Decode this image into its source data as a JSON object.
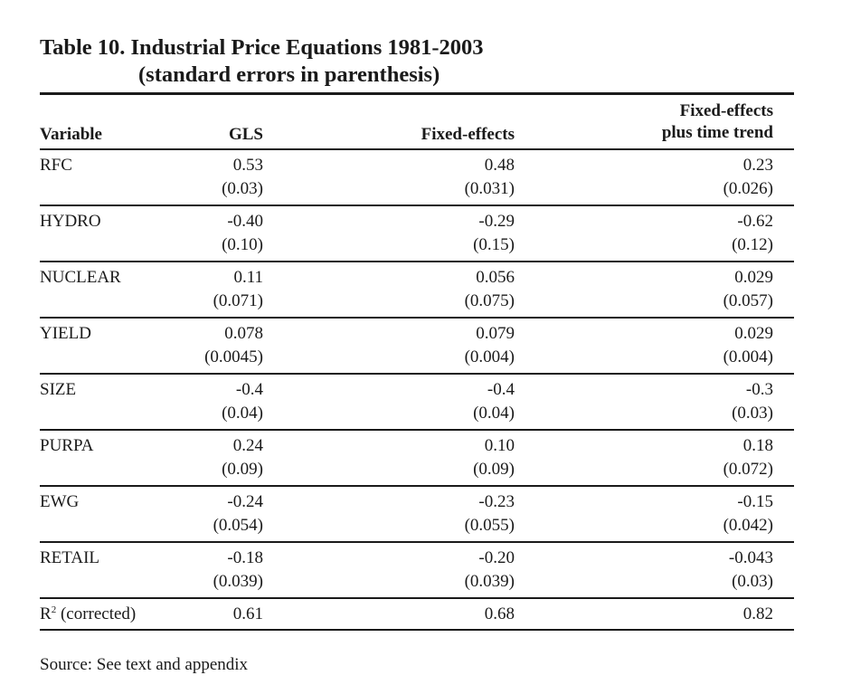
{
  "title": {
    "line1": "Table 10.  Industrial Price Equations 1981-2003",
    "line2": "(standard errors in parenthesis)"
  },
  "headers": {
    "variable": "Variable",
    "gls": "GLS",
    "fixed": "Fixed-effects",
    "trend_line1": "Fixed-effects",
    "trend_line2": "plus time trend"
  },
  "rows": [
    {
      "variable": "RFC",
      "gls": "0.53",
      "gls_se": "(0.03)",
      "fe": "0.48",
      "fe_se": "(0.031)",
      "fet": "0.23",
      "fet_se": "(0.026)"
    },
    {
      "variable": "HYDRO",
      "gls": "-0.40",
      "gls_se": "(0.10)",
      "fe": "-0.29",
      "fe_se": "(0.15)",
      "fet": "-0.62",
      "fet_se": "(0.12)"
    },
    {
      "variable": "NUCLEAR",
      "gls": "0.11",
      "gls_se": "(0.071)",
      "fe": "0.056",
      "fe_se": "(0.075)",
      "fet": "0.029",
      "fet_se": "(0.057)"
    },
    {
      "variable": "YIELD",
      "gls": "0.078",
      "gls_se": "(0.0045)",
      "fe": "0.079",
      "fe_se": "(0.004)",
      "fet": "0.029",
      "fet_se": "(0.004)"
    },
    {
      "variable": "SIZE",
      "gls": "-0.4",
      "gls_se": "(0.04)",
      "fe": "-0.4",
      "fe_se": "(0.04)",
      "fet": "-0.3",
      "fet_se": "(0.03)"
    },
    {
      "variable": "PURPA",
      "gls": "0.24",
      "gls_se": "(0.09)",
      "fe": "0.10",
      "fe_se": "(0.09)",
      "fet": "0.18",
      "fet_se": "(0.072)"
    },
    {
      "variable": "EWG",
      "gls": "-0.24",
      "gls_se": "(0.054)",
      "fe": "-0.23",
      "fe_se": "(0.055)",
      "fet": "-0.15",
      "fet_se": "(0.042)"
    },
    {
      "variable": "RETAIL",
      "gls": "-0.18",
      "gls_se": "(0.039)",
      "fe": "-0.20",
      "fe_se": "(0.039)",
      "fet": "-0.043",
      "fet_se": "(0.03)"
    }
  ],
  "r2": {
    "label_base": "R",
    "label_sup": "2",
    "label_rest": " (corrected)",
    "gls": "0.61",
    "fe": "0.68",
    "fet": "0.82"
  },
  "source": "Source:  See text and appendix"
}
